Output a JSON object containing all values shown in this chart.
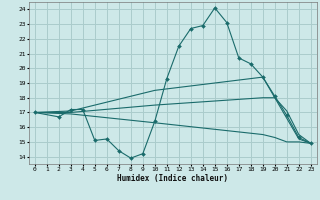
{
  "xlabel": "Humidex (Indice chaleur)",
  "bg_color": "#cde8e8",
  "grid_color": "#aacccc",
  "line_color": "#1a6b6b",
  "xlim": [
    -0.5,
    23.5
  ],
  "ylim": [
    13.5,
    24.5
  ],
  "yticks": [
    14,
    15,
    16,
    17,
    18,
    19,
    20,
    21,
    22,
    23,
    24
  ],
  "xticks": [
    0,
    1,
    2,
    3,
    4,
    5,
    6,
    7,
    8,
    9,
    10,
    11,
    12,
    13,
    14,
    15,
    16,
    17,
    18,
    19,
    20,
    21,
    22,
    23
  ],
  "lines": [
    {
      "x": [
        0,
        2,
        3,
        4,
        5,
        6,
        7,
        8,
        9,
        10,
        11,
        12,
        13,
        14,
        15,
        16,
        17,
        18,
        19,
        20,
        21,
        22,
        23
      ],
      "y": [
        17,
        16.7,
        17.2,
        17.2,
        15.1,
        15.2,
        14.4,
        13.9,
        14.2,
        16.4,
        19.3,
        21.5,
        22.7,
        22.9,
        24.1,
        23.1,
        20.7,
        20.3,
        19.4,
        18.1,
        16.8,
        15.3,
        14.9
      ],
      "marker": true
    },
    {
      "x": [
        0,
        3,
        10,
        19,
        20,
        21,
        22,
        23
      ],
      "y": [
        17,
        17.1,
        18.5,
        19.4,
        18.0,
        17.1,
        15.5,
        14.9
      ],
      "marker": false
    },
    {
      "x": [
        0,
        3,
        10,
        19,
        20,
        21,
        22,
        23
      ],
      "y": [
        17,
        17.0,
        17.5,
        18.0,
        18.0,
        16.6,
        15.2,
        14.9
      ],
      "marker": false
    },
    {
      "x": [
        0,
        3,
        10,
        19,
        20,
        21,
        22,
        23
      ],
      "y": [
        17,
        16.9,
        16.3,
        15.5,
        15.3,
        15.0,
        15.0,
        14.9
      ],
      "marker": false
    }
  ]
}
